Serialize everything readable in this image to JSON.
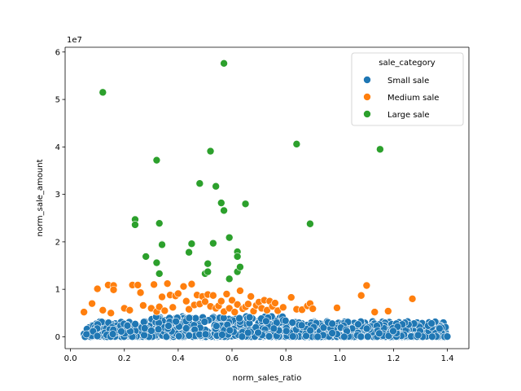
{
  "chart_data": {
    "type": "scatter",
    "xlabel": "norm_sales_ratio",
    "ylabel": "norm_sale_amount",
    "y_offset_label": "1e7",
    "xlim": [
      -0.02,
      1.48
    ],
    "ylim": [
      -2500000,
      61000000
    ],
    "x_ticks": [
      0.0,
      0.2,
      0.4,
      0.6,
      0.8,
      1.0,
      1.2,
      1.4
    ],
    "x_tick_labels": [
      "0.0",
      "0.2",
      "0.4",
      "0.6",
      "0.8",
      "1.0",
      "1.2",
      "1.4"
    ],
    "y_ticks": [
      0,
      10000000,
      20000000,
      30000000,
      40000000,
      50000000,
      60000000
    ],
    "y_tick_labels": [
      "0",
      "1",
      "2",
      "3",
      "4",
      "5",
      "6"
    ],
    "grid": false,
    "legend": {
      "title": "sale_category",
      "placement": "upper-right"
    },
    "marker_edge_color": "#ffffff",
    "series": [
      {
        "name": "Small sale",
        "color": "#1f77b4",
        "generated": {
          "count": 1400,
          "x_range": [
            0.05,
            1.4
          ],
          "y_max": 4300000
        }
      },
      {
        "name": "Medium sale",
        "color": "#ff7f0e",
        "points": [
          [
            0.05,
            5200000
          ],
          [
            0.08,
            7000000
          ],
          [
            0.1,
            10100000
          ],
          [
            0.12,
            5600000
          ],
          [
            0.14,
            10900000
          ],
          [
            0.15,
            5000000
          ],
          [
            0.16,
            10800000
          ],
          [
            0.16,
            9900000
          ],
          [
            0.2,
            6000000
          ],
          [
            0.22,
            5600000
          ],
          [
            0.23,
            10900000
          ],
          [
            0.25,
            10900000
          ],
          [
            0.26,
            9300000
          ],
          [
            0.27,
            6600000
          ],
          [
            0.3,
            6000000
          ],
          [
            0.31,
            11000000
          ],
          [
            0.32,
            5300000
          ],
          [
            0.33,
            6300000
          ],
          [
            0.34,
            8400000
          ],
          [
            0.35,
            5500000
          ],
          [
            0.36,
            11200000
          ],
          [
            0.37,
            8800000
          ],
          [
            0.38,
            6200000
          ],
          [
            0.39,
            8600000
          ],
          [
            0.4,
            9100000
          ],
          [
            0.42,
            10600000
          ],
          [
            0.43,
            7500000
          ],
          [
            0.44,
            5800000
          ],
          [
            0.45,
            11100000
          ],
          [
            0.46,
            6700000
          ],
          [
            0.47,
            8800000
          ],
          [
            0.48,
            6900000
          ],
          [
            0.49,
            8500000
          ],
          [
            0.5,
            7400000
          ],
          [
            0.51,
            8900000
          ],
          [
            0.52,
            6400000
          ],
          [
            0.53,
            8700000
          ],
          [
            0.54,
            6000000
          ],
          [
            0.55,
            6500000
          ],
          [
            0.56,
            7500000
          ],
          [
            0.57,
            5300000
          ],
          [
            0.58,
            9000000
          ],
          [
            0.59,
            6000000
          ],
          [
            0.6,
            7700000
          ],
          [
            0.61,
            5200000
          ],
          [
            0.62,
            6800000
          ],
          [
            0.63,
            9700000
          ],
          [
            0.64,
            5900000
          ],
          [
            0.65,
            6300000
          ],
          [
            0.66,
            6900000
          ],
          [
            0.67,
            8500000
          ],
          [
            0.68,
            5400000
          ],
          [
            0.69,
            6600000
          ],
          [
            0.7,
            7300000
          ],
          [
            0.71,
            6000000
          ],
          [
            0.72,
            7700000
          ],
          [
            0.73,
            5600000
          ],
          [
            0.74,
            7500000
          ],
          [
            0.75,
            6400000
          ],
          [
            0.76,
            7100000
          ],
          [
            0.77,
            5500000
          ],
          [
            0.79,
            6200000
          ],
          [
            0.82,
            8300000
          ],
          [
            0.84,
            5800000
          ],
          [
            0.86,
            5700000
          ],
          [
            0.88,
            6500000
          ],
          [
            0.89,
            7000000
          ],
          [
            0.9,
            5900000
          ],
          [
            0.99,
            6100000
          ],
          [
            1.08,
            8700000
          ],
          [
            1.1,
            10800000
          ],
          [
            1.13,
            5200000
          ],
          [
            1.18,
            5400000
          ],
          [
            1.27,
            8000000
          ]
        ]
      },
      {
        "name": "Large sale",
        "color": "#2ca02c",
        "points": [
          [
            0.12,
            51500000
          ],
          [
            0.24,
            24700000
          ],
          [
            0.24,
            23600000
          ],
          [
            0.28,
            16900000
          ],
          [
            0.32,
            37200000
          ],
          [
            0.32,
            15600000
          ],
          [
            0.33,
            23900000
          ],
          [
            0.33,
            13300000
          ],
          [
            0.34,
            19500000
          ],
          [
            0.34,
            19400000
          ],
          [
            0.44,
            17800000
          ],
          [
            0.45,
            19600000
          ],
          [
            0.48,
            32300000
          ],
          [
            0.5,
            13300000
          ],
          [
            0.51,
            15400000
          ],
          [
            0.51,
            13700000
          ],
          [
            0.52,
            39100000
          ],
          [
            0.53,
            19700000
          ],
          [
            0.54,
            31700000
          ],
          [
            0.56,
            28200000
          ],
          [
            0.57,
            57600000
          ],
          [
            0.57,
            26600000
          ],
          [
            0.59,
            12200000
          ],
          [
            0.59,
            20900000
          ],
          [
            0.62,
            17900000
          ],
          [
            0.62,
            16900000
          ],
          [
            0.62,
            13700000
          ],
          [
            0.63,
            14700000
          ],
          [
            0.65,
            28000000
          ],
          [
            0.84,
            40600000
          ],
          [
            0.89,
            23800000
          ],
          [
            1.15,
            39500000
          ]
        ]
      }
    ]
  }
}
